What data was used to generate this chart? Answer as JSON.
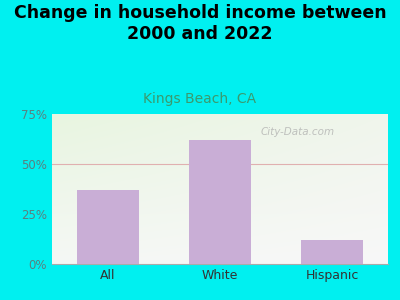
{
  "title": "Change in household income between\n2000 and 2022",
  "subtitle": "Kings Beach, CA",
  "categories": [
    "All",
    "White",
    "Hispanic"
  ],
  "values": [
    37,
    62,
    12
  ],
  "bar_color": "#c9aed6",
  "title_fontsize": 12.5,
  "subtitle_fontsize": 10,
  "subtitle_color": "#3a9a6e",
  "title_color": "#000000",
  "ylim": [
    0,
    75
  ],
  "yticks": [
    0,
    25,
    50,
    75
  ],
  "ytick_labels": [
    "0%",
    "25%",
    "50%",
    "75%"
  ],
  "background_outer": "#00f0f0",
  "plot_bg_color_topleft": "#e8f5e0",
  "plot_bg_color_bottomright": "#f8f8f8",
  "grid_color": "#e0b0b0",
  "watermark": "City-Data.com",
  "bar_width": 0.55,
  "tick_color": "#5a8080",
  "xlabel_color": "#333333"
}
